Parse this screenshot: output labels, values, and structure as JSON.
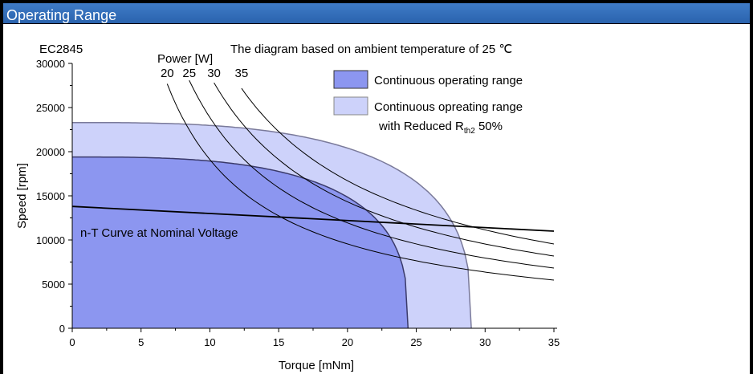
{
  "header": {
    "title": "Operating Range"
  },
  "chart_data": {
    "type": "area",
    "model": "EC2845",
    "note": "The diagram based on ambient temperature of 25 ℃",
    "xlabel": "Torque [mNm]",
    "ylabel": "Speed [rpm]",
    "xlim": [
      0,
      35
    ],
    "ylim": [
      0,
      30000
    ],
    "xticks": [
      0,
      5,
      10,
      15,
      20,
      25,
      30,
      35
    ],
    "yticks": [
      0,
      5000,
      10000,
      15000,
      20000,
      25000,
      30000
    ],
    "legend": {
      "placement": "top-right",
      "items": [
        {
          "line1": "Continuous operating range",
          "color": "#8c96f0"
        },
        {
          "line1": "Continuous opreating range",
          "line2_prefix": "with Reduced R",
          "line2_sub": "th2",
          "line2_suffix": " 50%",
          "color": "#cdd2fa"
        }
      ]
    },
    "power_label": "Power [W]",
    "power_values": [
      20,
      25,
      30,
      35
    ],
    "regions": [
      {
        "name": "Continuous opreating range with Reduced Rth2 50%",
        "color": "#cdd2fa",
        "stroke": "#7a7a9a",
        "max_speed": 23300,
        "max_torque": 29,
        "shape_exp": 3.0
      },
      {
        "name": "Continuous operating range",
        "color": "#8c96f0",
        "stroke": "#3a3a6a",
        "max_speed": 19400,
        "max_torque": 24.4,
        "shape_exp": 3.0
      }
    ],
    "nt_curve": {
      "label": "n-T Curve at Nominal Voltage",
      "x": [
        0,
        35
      ],
      "y": [
        13800,
        11000
      ]
    },
    "power_curves": [
      {
        "power": 20,
        "x_start": 6.9,
        "x_end": 35
      },
      {
        "power": 25,
        "x_start": 8.5,
        "x_end": 35
      },
      {
        "power": 30,
        "x_start": 10.3,
        "x_end": 35
      },
      {
        "power": 35,
        "x_start": 12.3,
        "x_end": 35
      }
    ]
  }
}
